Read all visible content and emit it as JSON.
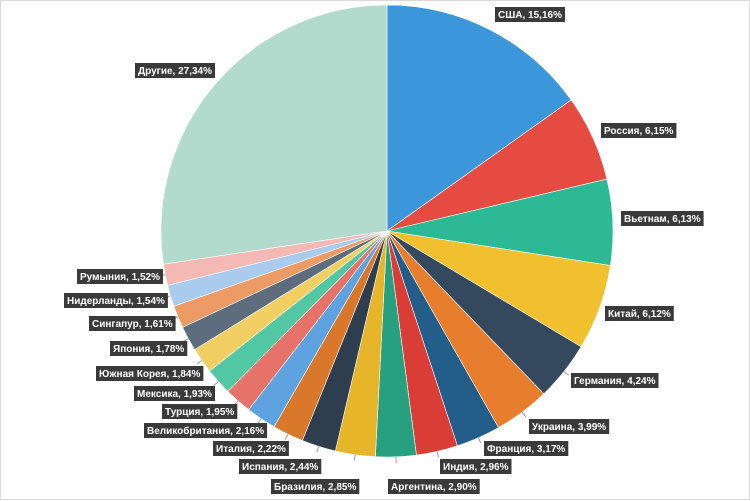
{
  "chart_data": {
    "type": "pie",
    "title": "",
    "series": [
      {
        "label": "США",
        "value": 15.16,
        "value_text": "15,16%",
        "color": "#3b97d9"
      },
      {
        "label": "Россия",
        "value": 6.15,
        "value_text": "6,15%",
        "color": "#e54b40"
      },
      {
        "label": "Вьетнам",
        "value": 6.13,
        "value_text": "6,13%",
        "color": "#2cb995"
      },
      {
        "label": "Китай",
        "value": 6.12,
        "value_text": "6,12%",
        "color": "#f0c02f"
      },
      {
        "label": "Германия",
        "value": 4.24,
        "value_text": "4,24%",
        "color": "#34495d"
      },
      {
        "label": "Украина",
        "value": 3.99,
        "value_text": "3,99%",
        "color": "#e67e2e"
      },
      {
        "label": "Франция",
        "value": 3.17,
        "value_text": "3,17%",
        "color": "#235d8a"
      },
      {
        "label": "Индия",
        "value": 2.96,
        "value_text": "2,96%",
        "color": "#d93d35"
      },
      {
        "label": "Аргентина",
        "value": 2.9,
        "value_text": "2,90%",
        "color": "#27a07f"
      },
      {
        "label": "Бразилия",
        "value": 2.85,
        "value_text": "2,85%",
        "color": "#e6b529"
      },
      {
        "label": "Испания",
        "value": 2.44,
        "value_text": "2,44%",
        "color": "#2f3e4e"
      },
      {
        "label": "Италия",
        "value": 2.22,
        "value_text": "2,22%",
        "color": "#d9772b"
      },
      {
        "label": "Великобритания",
        "value": 2.16,
        "value_text": "2,16%",
        "color": "#5ea3e0"
      },
      {
        "label": "Турция",
        "value": 1.95,
        "value_text": "1,95%",
        "color": "#e6736a"
      },
      {
        "label": "Мексика",
        "value": 1.93,
        "value_text": "1,93%",
        "color": "#52c7a3"
      },
      {
        "label": "Южная Корея",
        "value": 1.84,
        "value_text": "1,84%",
        "color": "#f2cf63"
      },
      {
        "label": "Япония",
        "value": 1.78,
        "value_text": "1,78%",
        "color": "#5d6d7e"
      },
      {
        "label": "Сингапур",
        "value": 1.61,
        "value_text": "1,61%",
        "color": "#ec9b65"
      },
      {
        "label": "Нидерланды",
        "value": 1.54,
        "value_text": "1,54%",
        "color": "#a9cbee"
      },
      {
        "label": "Румыния",
        "value": 1.52,
        "value_text": "1,52%",
        "color": "#f4b8b5"
      },
      {
        "label": "Другие",
        "value": 27.34,
        "value_text": "27,34%",
        "color": "#b2dbcd"
      }
    ]
  }
}
